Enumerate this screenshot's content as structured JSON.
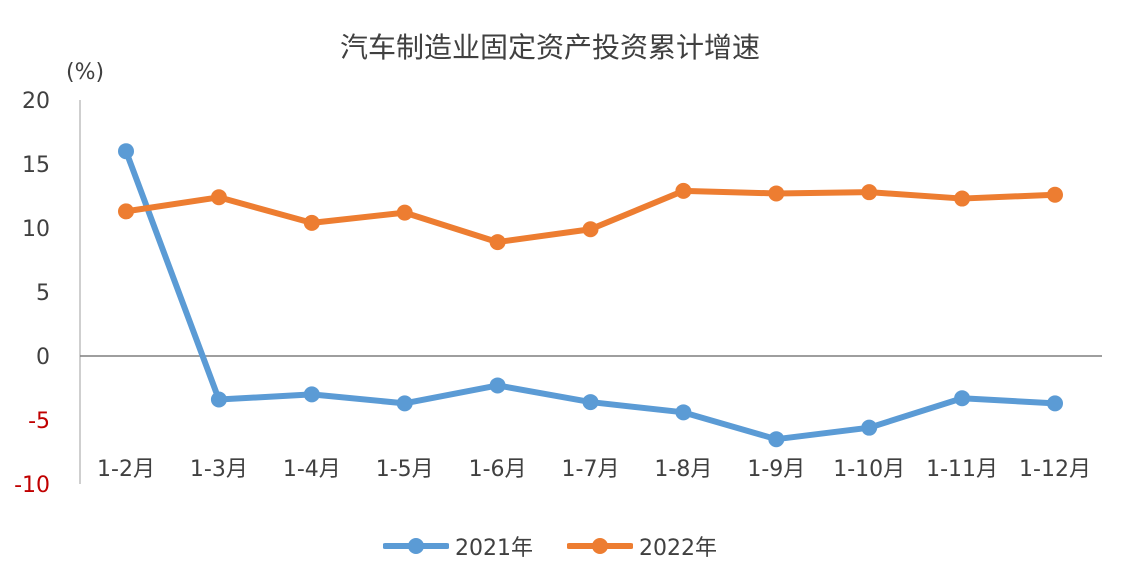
{
  "chart_data": {
    "type": "line",
    "title": "汽车制造业固定资产投资累计增速",
    "unit_label": "(%)",
    "categories": [
      "1-2月",
      "1-3月",
      "1-4月",
      "1-5月",
      "1-6月",
      "1-7月",
      "1-8月",
      "1-9月",
      "1-10月",
      "1-11月",
      "1-12月"
    ],
    "series": [
      {
        "name": "2021年",
        "color": "#5B9BD5",
        "values": [
          16.0,
          -3.4,
          -3.0,
          -3.7,
          -2.3,
          -3.6,
          -4.4,
          -6.5,
          -5.6,
          -3.3,
          -3.7
        ]
      },
      {
        "name": "2022年",
        "color": "#ED7D31",
        "values": [
          11.3,
          12.4,
          10.4,
          11.2,
          8.9,
          9.9,
          12.9,
          12.7,
          12.8,
          12.3,
          12.6
        ]
      }
    ],
    "ylim": [
      -10,
      20
    ],
    "yticks": [
      20,
      15,
      10,
      5,
      0,
      -5,
      -10
    ],
    "negative_tick_color": "#C00000",
    "legend_position": "bottom",
    "grid": false
  }
}
